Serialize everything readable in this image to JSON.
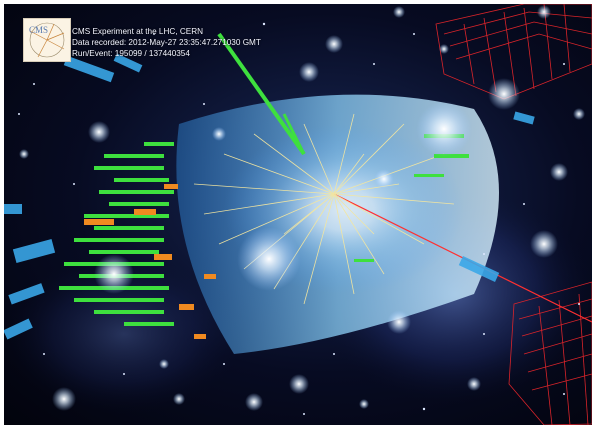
{
  "caption": {
    "line1": "CMS Experiment at the LHC, CERN",
    "line2": "Data recorded: 2012-May-27 23:35:47.271030 GMT",
    "line3": "Run/Event: 195099 / 137440354"
  },
  "logo": {
    "text": "CMS"
  },
  "colors": {
    "space": "#050819",
    "barrel": "#7fd0ff",
    "tracks": "#f3e6a0",
    "hcal": "#3ee03e",
    "ecal": "#f08a20",
    "muon_chambers": "#e0242a",
    "muon_track": "#ff3030"
  }
}
